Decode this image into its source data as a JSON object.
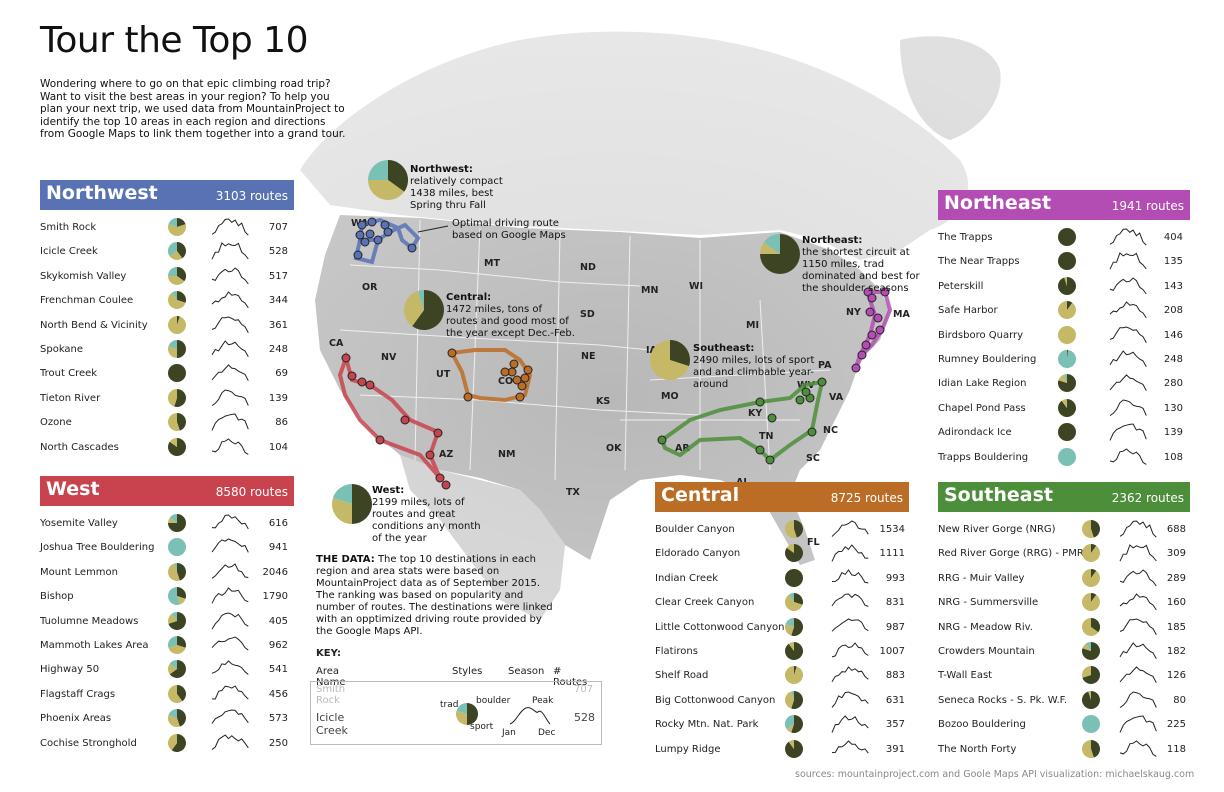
{
  "title": "Tour the Top 10",
  "intro": "Wondering where to go on that epic climbing road trip?  Want to visit the best areas in your region?  To help you plan your next trip, we used data from MountainProject to identify the top 10 areas in each region and directions from Google Maps to link them together into a grand tour.",
  "colors": {
    "northwest": "#5872b4",
    "west": "#c8434d",
    "central": "#bc6d25",
    "northeast": "#b34db3",
    "southeast": "#4c8e3a",
    "pie_trad": "#3d4424",
    "pie_sport": "#c5b967",
    "pie_boulder": "#7ac0b5"
  },
  "panels": {
    "northwest": {
      "name": "Northwest",
      "total": "3103 routes",
      "items": [
        {
          "name": "Smith Rock",
          "count": "707",
          "pie": [
            0.2,
            0.6,
            0.2
          ]
        },
        {
          "name": "Icicle Creek",
          "count": "528",
          "pie": [
            0.4,
            0.25,
            0.35
          ]
        },
        {
          "name": "Skykomish Valley",
          "count": "517",
          "pie": [
            0.35,
            0.4,
            0.25
          ]
        },
        {
          "name": "Frenchman Coulee",
          "count": "344",
          "pie": [
            0.3,
            0.6,
            0.1
          ]
        },
        {
          "name": "North Bend & Vicinity",
          "count": "361",
          "pie": [
            0.05,
            0.95,
            0
          ]
        },
        {
          "name": "Spokane",
          "count": "248",
          "pie": [
            0.5,
            0.3,
            0.2
          ]
        },
        {
          "name": "Trout Creek",
          "count": "69",
          "pie": [
            1,
            0,
            0
          ]
        },
        {
          "name": "Tieton River",
          "count": "139",
          "pie": [
            0.55,
            0.45,
            0
          ]
        },
        {
          "name": "Ozone",
          "count": "86",
          "pie": [
            0.45,
            0.55,
            0
          ]
        },
        {
          "name": "North Cascades",
          "count": "104",
          "pie": [
            0.85,
            0.15,
            0
          ]
        }
      ]
    },
    "west": {
      "name": "West",
      "total": "8580 routes",
      "items": [
        {
          "name": "Yosemite Valley",
          "count": "616",
          "pie": [
            0.75,
            0.1,
            0.15
          ]
        },
        {
          "name": "Joshua Tree Bouldering",
          "count": "941",
          "pie": [
            0,
            0,
            1
          ]
        },
        {
          "name": "Mount Lemmon",
          "count": "2046",
          "pie": [
            0.45,
            0.5,
            0.05
          ]
        },
        {
          "name": "Bishop",
          "count": "1790",
          "pie": [
            0.3,
            0.15,
            0.55
          ]
        },
        {
          "name": "Tuolumne Meadows",
          "count": "405",
          "pie": [
            0.7,
            0.2,
            0.1
          ]
        },
        {
          "name": "Mammoth Lakes Area",
          "count": "962",
          "pie": [
            0.3,
            0.4,
            0.3
          ]
        },
        {
          "name": "Highway 50",
          "count": "541",
          "pie": [
            0.65,
            0.2,
            0.15
          ]
        },
        {
          "name": "Flagstaff Crags",
          "count": "456",
          "pie": [
            0.4,
            0.6,
            0
          ]
        },
        {
          "name": "Phoenix Areas",
          "count": "573",
          "pie": [
            0.45,
            0.35,
            0.2
          ]
        },
        {
          "name": "Cochise Stronghold",
          "count": "250",
          "pie": [
            0.6,
            0.4,
            0
          ]
        }
      ]
    },
    "central": {
      "name": "Central",
      "total": "8725 routes",
      "items": [
        {
          "name": "Boulder Canyon",
          "count": "1534",
          "pie": [
            0.45,
            0.55,
            0
          ]
        },
        {
          "name": "Eldorado Canyon",
          "count": "1111",
          "pie": [
            0.85,
            0.15,
            0
          ]
        },
        {
          "name": "Indian Creek",
          "count": "993",
          "pie": [
            1,
            0,
            0
          ]
        },
        {
          "name": "Clear Creek Canyon",
          "count": "831",
          "pie": [
            0.3,
            0.6,
            0.1
          ]
        },
        {
          "name": "Little Cottonwood Canyon",
          "count": "987",
          "pie": [
            0.55,
            0.25,
            0.2
          ]
        },
        {
          "name": "Flatirons",
          "count": "1007",
          "pie": [
            0.9,
            0.1,
            0
          ]
        },
        {
          "name": "Shelf Road",
          "count": "883",
          "pie": [
            0.05,
            0.95,
            0
          ]
        },
        {
          "name": "Big Cottonwood Canyon",
          "count": "631",
          "pie": [
            0.55,
            0.4,
            0.05
          ]
        },
        {
          "name": "Rocky Mtn. Nat. Park",
          "count": "357",
          "pie": [
            0.55,
            0.1,
            0.35
          ]
        },
        {
          "name": "Lumpy Ridge",
          "count": "391",
          "pie": [
            0.9,
            0.1,
            0
          ]
        }
      ]
    },
    "northeast": {
      "name": "Northeast",
      "total": "1941 routes",
      "items": [
        {
          "name": "The Trapps",
          "count": "404",
          "pie": [
            1,
            0,
            0
          ]
        },
        {
          "name": "The Near Trapps",
          "count": "135",
          "pie": [
            1,
            0,
            0
          ]
        },
        {
          "name": "Peterskill",
          "count": "143",
          "pie": [
            0.95,
            0.05,
            0
          ]
        },
        {
          "name": "Safe Harbor",
          "count": "208",
          "pie": [
            0.1,
            0.9,
            0
          ]
        },
        {
          "name": "Birdsboro Quarry",
          "count": "146",
          "pie": [
            0,
            1,
            0
          ]
        },
        {
          "name": "Rumney Bouldering",
          "count": "248",
          "pie": [
            0.02,
            0,
            0.98
          ]
        },
        {
          "name": "Idian Lake Region",
          "count": "280",
          "pie": [
            0.8,
            0.15,
            0.05
          ]
        },
        {
          "name": "Chapel Pond Pass",
          "count": "130",
          "pie": [
            0.9,
            0.1,
            0
          ]
        },
        {
          "name": "Adirondack Ice",
          "count": "139",
          "pie": [
            1,
            0,
            0
          ]
        },
        {
          "name": "Trapps Bouldering",
          "count": "108",
          "pie": [
            0,
            0,
            1
          ]
        }
      ]
    },
    "southeast": {
      "name": "Southeast",
      "total": "2362 routes",
      "items": [
        {
          "name": "New River Gorge (NRG)",
          "count": "688",
          "pie": [
            0.45,
            0.55,
            0
          ]
        },
        {
          "name": "Red River Gorge (RRG) - PMRP",
          "count": "309",
          "pie": [
            0.1,
            0.9,
            0
          ]
        },
        {
          "name": "RRG - Muir Valley",
          "count": "289",
          "pie": [
            0.1,
            0.9,
            0
          ]
        },
        {
          "name": "NRG - Summersville",
          "count": "160",
          "pie": [
            0.1,
            0.9,
            0
          ]
        },
        {
          "name": "NRG - Meadow Riv.",
          "count": "185",
          "pie": [
            0.35,
            0.65,
            0
          ]
        },
        {
          "name": "Crowders Mountain",
          "count": "182",
          "pie": [
            0.8,
            0.1,
            0.1
          ]
        },
        {
          "name": "T-Wall East",
          "count": "126",
          "pie": [
            0.7,
            0.3,
            0
          ]
        },
        {
          "name": "Seneca Rocks - S. Pk. W.F.",
          "count": "80",
          "pie": [
            0.95,
            0.05,
            0
          ]
        },
        {
          "name": "Bozoo Bouldering",
          "count": "225",
          "pie": [
            0,
            0,
            1
          ]
        },
        {
          "name": "The North Forty",
          "count": "118",
          "pie": [
            0.45,
            0.55,
            0
          ]
        }
      ]
    }
  },
  "callouts": {
    "northwest": {
      "head": "Northwest:",
      "body": "relatively compact 1438 miles, best Spring thru Fall",
      "pie": [
        0.35,
        0.4,
        0.25
      ]
    },
    "central": {
      "head": "Central:",
      "body": "1472 miles, tons of routes and good most of the year except Dec.-Feb.",
      "pie": [
        0.6,
        0.35,
        0.05
      ]
    },
    "west": {
      "head": "West:",
      "body": "2199 miles, lots of routes and great conditions any month of the year",
      "pie": [
        0.5,
        0.3,
        0.2
      ]
    },
    "northeast": {
      "head": "Northeast:",
      "body": "the shortest circuit at 1150 miles, trad dominated and best for the shoulder seasons",
      "pie": [
        0.75,
        0.1,
        0.15
      ]
    },
    "southeast": {
      "head": "Southeast:",
      "body": "2490 miles, lots of sport and and climbable year-around",
      "pie": [
        0.3,
        0.7,
        0
      ]
    },
    "route_note": "Optimal driving route based on Google Maps"
  },
  "states": [
    "WA",
    "OR",
    "MT",
    "ND",
    "MN",
    "WI",
    "MI",
    "SD",
    "NE",
    "IA",
    "KS",
    "MO",
    "OK",
    "TX",
    "AR",
    "KY",
    "TN",
    "NM",
    "AZ",
    "NV",
    "CA",
    "UT",
    "CO",
    "FL",
    "NC",
    "SC",
    "VA",
    "NY",
    "MA",
    "PA",
    "WV",
    "AL"
  ],
  "data_note": {
    "label": "THE DATA:",
    "text": "The top 10 destinations in each region and area stats were based on MountainProject data as of September 2015. The ranking was based on popularity and number of routes. The destinations were linked with an opptimized driving route provided by the Google Maps API."
  },
  "key": {
    "title": "KEY:",
    "col_area": "Area Name",
    "col_styles": "Styles",
    "col_season": "Season",
    "col_routes": "# Routes",
    "ghost_name": "Smith Rock",
    "ghost_count": "707",
    "example_name": "Icicle Creek",
    "example_count": "528",
    "trad": "trad",
    "boulder": "boulder",
    "sport": "sport",
    "peak": "Peak",
    "jan": "Jan",
    "dec": "Dec"
  },
  "sources": "sources: mountainproject.com and Goole Maps API  visualization: michaelskaug.com"
}
